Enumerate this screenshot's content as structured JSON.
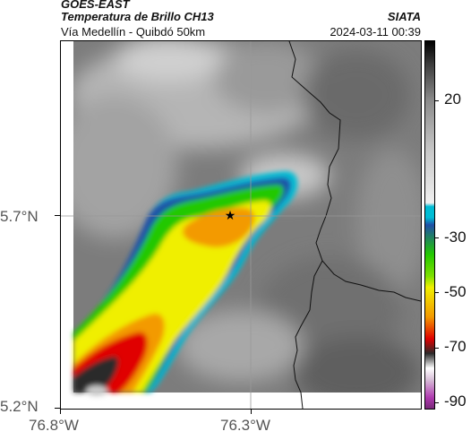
{
  "header": {
    "satellite": "GOES-EAST",
    "product": "Temperatura de Brillo CH13",
    "location": "Vía Medellín - Quibdó 50km",
    "agency": "SIATA",
    "datetime": "2024-03-11 00:39"
  },
  "map": {
    "y_ticks": [
      "5.7°N",
      "5.2°N"
    ],
    "x_ticks": [
      "76.8°W",
      "76.3°W"
    ],
    "marker": "star-icon",
    "grid": true
  },
  "colorbar": {
    "ticks": [
      "20",
      "-30",
      "-50",
      "-70",
      "-90"
    ],
    "colors": {
      "warm": "#808080",
      "cyan": "#00bcd4",
      "blue": "#1f4fa8",
      "green": "#22c800",
      "yellow": "#f0ef00",
      "orange": "#f39a00",
      "red": "#e00000",
      "dark": "#2a2a2a",
      "magenta": "#b03ab0"
    }
  }
}
